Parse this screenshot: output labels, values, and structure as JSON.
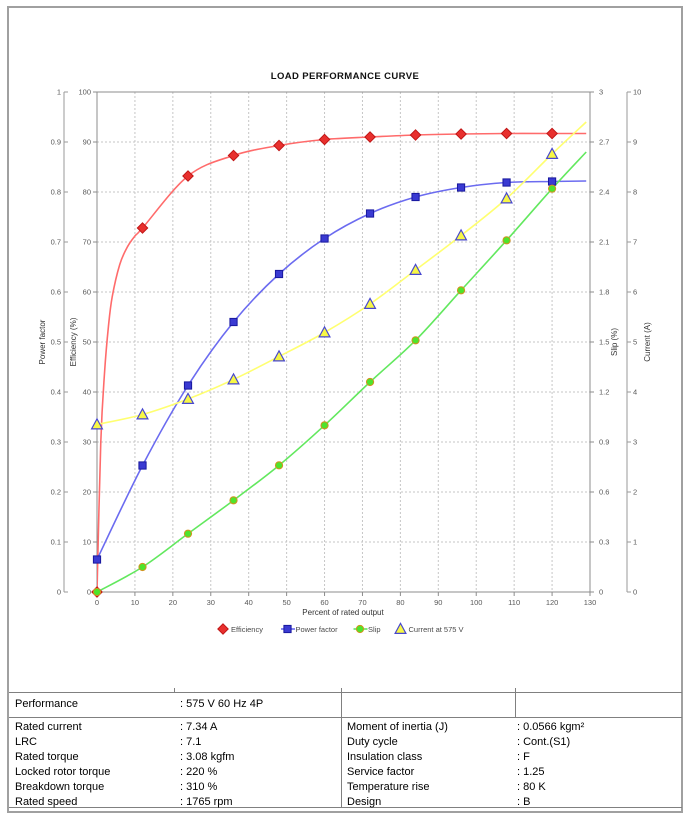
{
  "window": {
    "border_color": "#a0a0a0",
    "background": "#ffffff"
  },
  "chart_data": {
    "type": "line",
    "title": "LOAD PERFORMANCE CURVE",
    "grid": true,
    "legend_position": "bottom",
    "axes": {
      "x": {
        "label": "Percent of rated output",
        "min": 0,
        "max": 130,
        "step": 10
      },
      "power_factor": {
        "label": "Power factor",
        "min": 0,
        "max": 1,
        "step": 0.1
      },
      "efficiency": {
        "label": "Efficiency (%)",
        "min": 0,
        "max": 100,
        "step": 10
      },
      "slip": {
        "label": "Slip (%)",
        "min": 0,
        "max": 3,
        "step": 0.3
      },
      "current": {
        "label": "Current (A)",
        "min": 0,
        "max": 10,
        "step": 1
      }
    },
    "x": [
      0,
      12,
      24,
      36,
      48,
      60,
      72,
      84,
      96,
      108,
      120
    ],
    "series": [
      {
        "name": "Efficiency",
        "axis": "efficiency",
        "marker": "diamond",
        "line_color": "#ff6b6b",
        "marker_fill": "#e8302e",
        "marker_stroke": "#c01616",
        "values": [
          0,
          72.8,
          83.2,
          87.3,
          89.3,
          90.5,
          91.0,
          91.4,
          91.6,
          91.7,
          91.7
        ],
        "extra_line_points": [
          [
            1,
            30
          ],
          [
            2,
            44
          ],
          [
            3,
            53
          ],
          [
            4,
            59
          ],
          [
            6,
            65.5
          ],
          [
            8,
            69
          ],
          [
            10,
            71.2
          ],
          [
            129,
            91.7
          ]
        ]
      },
      {
        "name": "Power factor",
        "axis": "power_factor",
        "marker": "square",
        "line_color": "#6b6bf0",
        "marker_fill": "#3a3ad2",
        "marker_stroke": "#18189e",
        "values": [
          0.065,
          0.253,
          0.413,
          0.54,
          0.636,
          0.707,
          0.757,
          0.79,
          0.809,
          0.819,
          0.821
        ],
        "extra_line_points": [
          [
            129,
            0.822
          ]
        ]
      },
      {
        "name": "Slip",
        "axis": "slip",
        "marker": "circle",
        "line_color": "#62e85e",
        "marker_fill": "#4ee42c",
        "marker_stroke": "#d2921e",
        "values": [
          0,
          0.15,
          0.35,
          0.55,
          0.76,
          1.0,
          1.26,
          1.51,
          1.81,
          2.11,
          2.42
        ],
        "extra_line_points": [
          [
            129,
            2.64
          ]
        ]
      },
      {
        "name": "Current at 575 V",
        "axis": "current",
        "marker": "triangle",
        "line_color": "#ffff70",
        "marker_fill": "#f7f746",
        "marker_stroke": "#4747cf",
        "values": [
          3.35,
          3.55,
          3.86,
          4.25,
          4.71,
          5.19,
          5.76,
          6.44,
          7.13,
          7.87,
          8.76
        ],
        "extra_line_points": [
          [
            129,
            9.4
          ]
        ]
      }
    ]
  },
  "table": {
    "performance": {
      "label": "Performance",
      "value": ": 575 V 60 Hz 4P"
    },
    "left_rows": [
      {
        "label": "Rated current",
        "value": ": 7.34 A"
      },
      {
        "label": "LRC",
        "value": ": 7.1"
      },
      {
        "label": "Rated torque",
        "value": ": 3.08 kgfm"
      },
      {
        "label": "Locked rotor torque",
        "value": ": 220 %"
      },
      {
        "label": "Breakdown torque",
        "value": ": 310 %"
      },
      {
        "label": "Rated speed",
        "value": ": 1765 rpm"
      }
    ],
    "right_rows": [
      {
        "label": "Moment of inertia (J)",
        "value": ": 0.0566 kgm²"
      },
      {
        "label": "Duty cycle",
        "value": ": Cont.(S1)"
      },
      {
        "label": "Insulation class",
        "value": ": F"
      },
      {
        "label": "Service factor",
        "value": ": 1.25"
      },
      {
        "label": "Temperature rise",
        "value": ": 80 K"
      },
      {
        "label": "Design",
        "value": ": B"
      }
    ]
  }
}
